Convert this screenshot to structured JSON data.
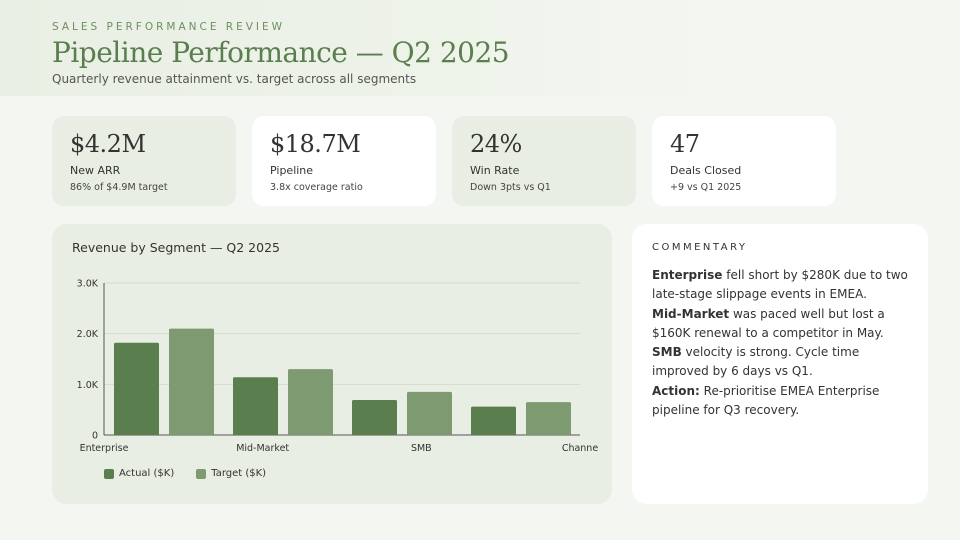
{
  "header": {
    "eyebrow": "SALES PERFORMANCE REVIEW",
    "title": "Pipeline Performance — Q2 2025",
    "subtitle": "Quarterly revenue attainment vs. target across all segments"
  },
  "kpis": [
    {
      "value": "$4.2M",
      "label": "New ARR",
      "note": "86% of $4.9M target"
    },
    {
      "value": "$18.7M",
      "label": "Pipeline",
      "note": "3.8x coverage ratio"
    },
    {
      "value": "24%",
      "label": "Win Rate",
      "note": "Down 3pts vs Q1"
    },
    {
      "value": "47",
      "label": "Deals Closed",
      "note": "+9 vs Q1 2025"
    }
  ],
  "chart_data": {
    "type": "bar",
    "title": "Revenue by Segment — Q2 2025",
    "categories": [
      "Enterprise",
      "Mid-Market",
      "SMB",
      "Channe"
    ],
    "series": [
      {
        "name": "Actual ($K)",
        "values": [
          1820,
          1140,
          690,
          560
        ],
        "color": "#5b7e4e"
      },
      {
        "name": "Target ($K)",
        "values": [
          2100,
          1300,
          850,
          650
        ],
        "color": "#7d9a70"
      }
    ],
    "yticks": [
      "0",
      "1.0K",
      "2.0K",
      "3.0K"
    ],
    "ylim": [
      0,
      3000
    ],
    "grid": true,
    "legend": "bottom-left"
  },
  "commentary": {
    "title": "COMMENTARY",
    "items": [
      {
        "lead": "Enterprise",
        "text": " fell short by $280K due to two late-stage slippage events in EMEA."
      },
      {
        "lead": "Mid-Market",
        "text": " was paced well but lost a $160K renewal to a competitor in May."
      },
      {
        "lead": "SMB",
        "text": " velocity is strong. Cycle time improved by 6 days vs Q1."
      },
      {
        "lead": "Action:",
        "text": " Re-prioritise EMEA Enterprise pipeline for Q3 recovery."
      }
    ]
  }
}
